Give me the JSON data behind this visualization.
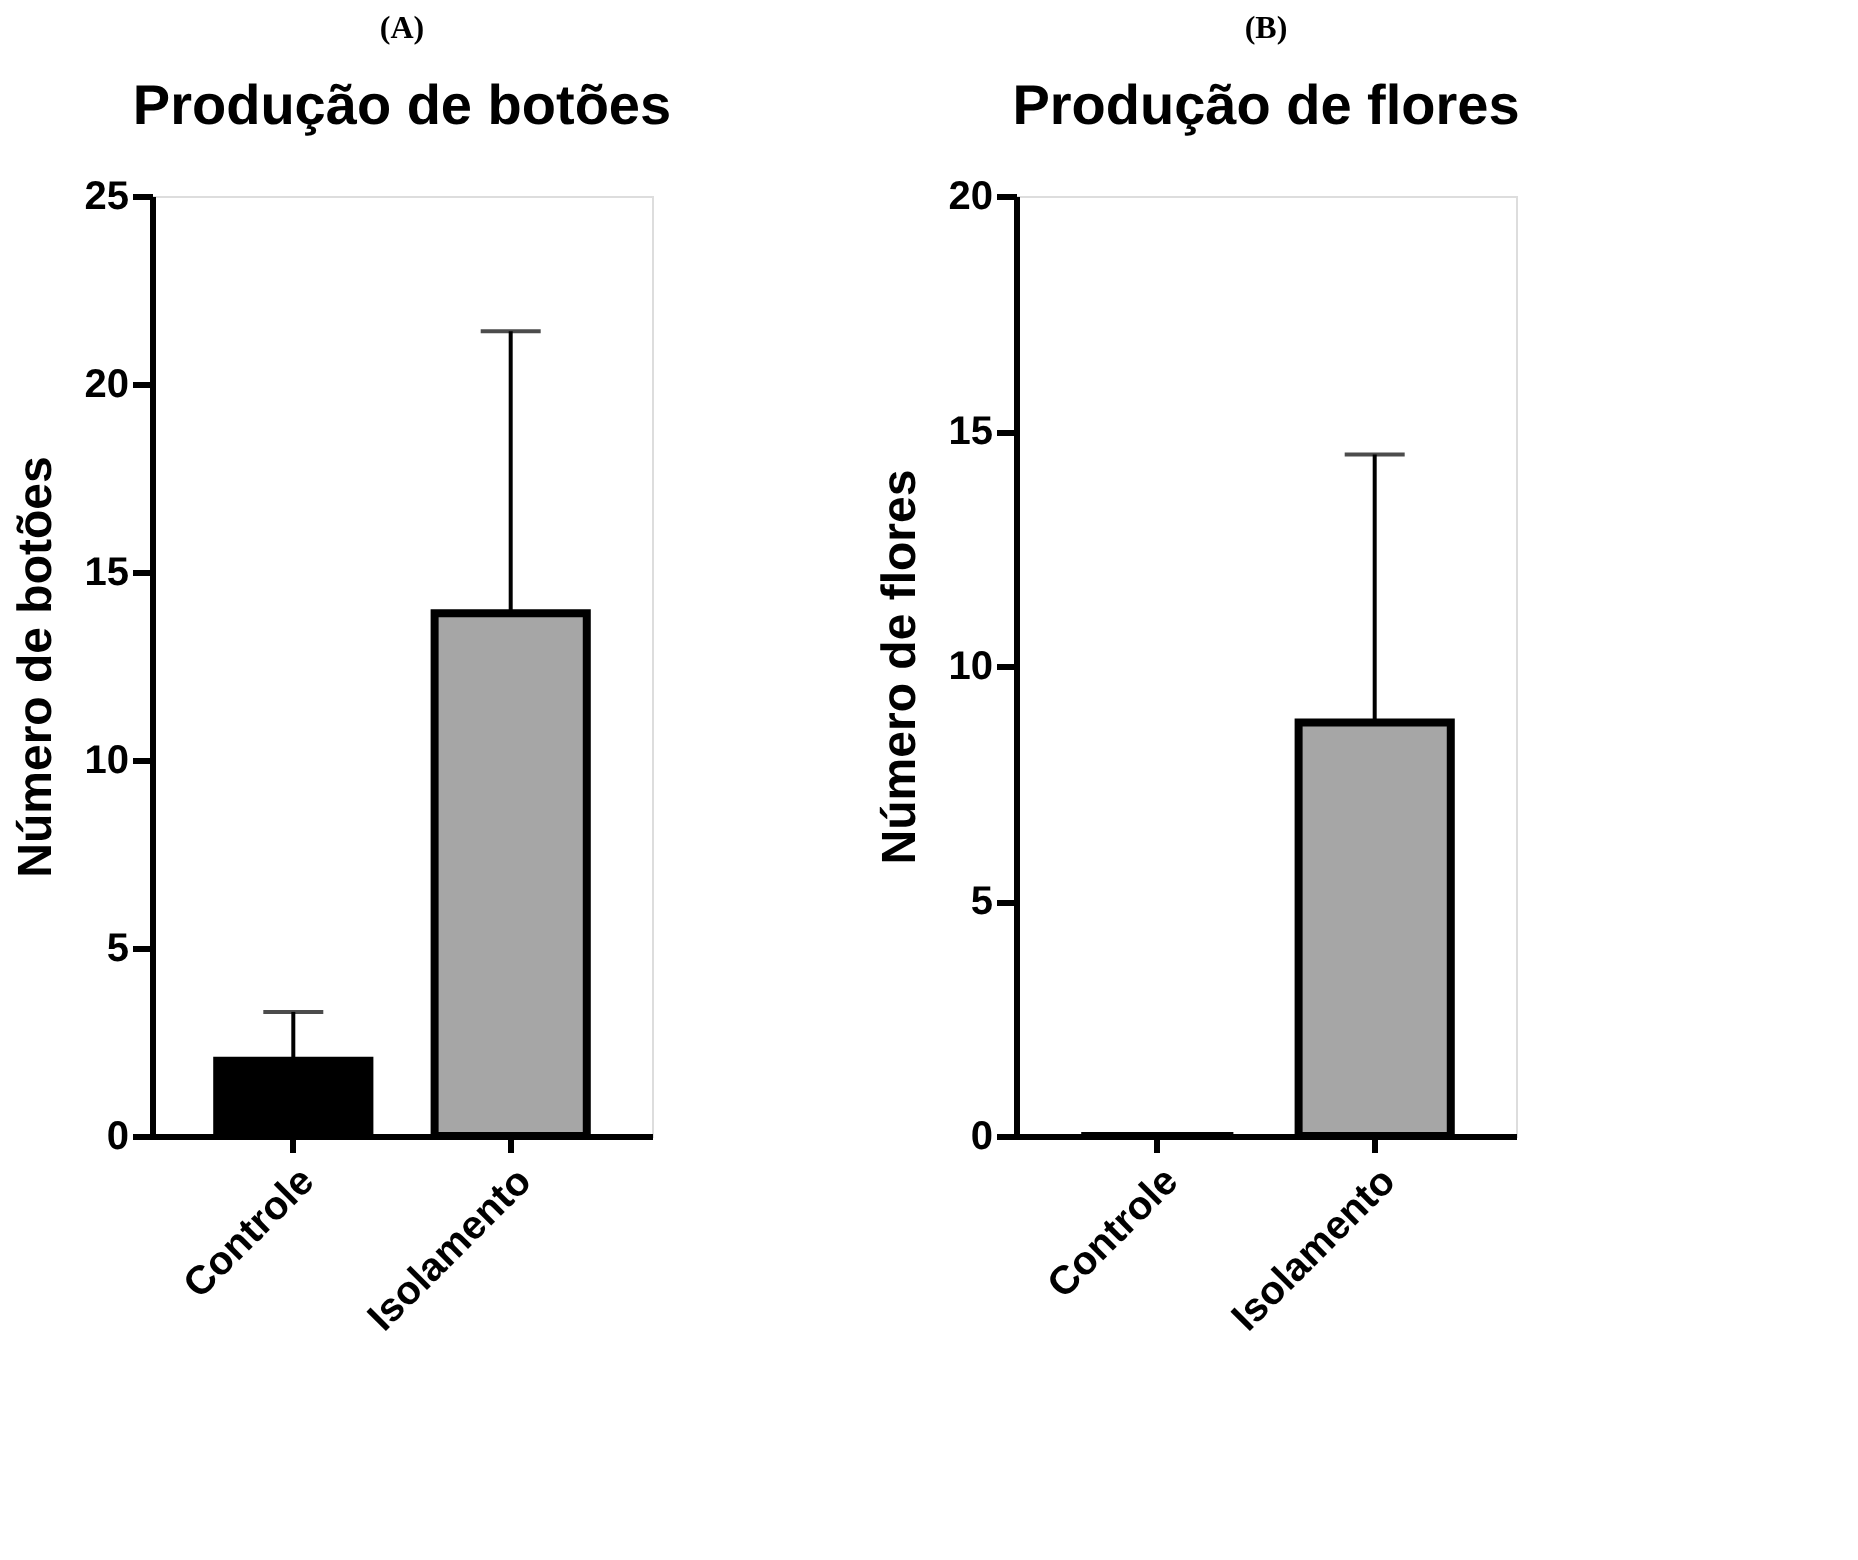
{
  "chart_data": [
    {
      "type": "bar",
      "title": "Produção de botões",
      "ylabel": "Número de botões",
      "annotations": [
        "(A)"
      ],
      "categories": [
        "Controle",
        "Isolamento"
      ],
      "values": [
        2,
        13.9
      ],
      "colors": [
        "#000000",
        "#a6a6a6"
      ],
      "errors": [
        [
          2,
          3.3
        ],
        [
          13.9,
          21.4
        ]
      ],
      "ylim": [
        0,
        25
      ],
      "yticks": [
        0,
        5,
        10,
        15,
        20,
        25
      ],
      "grid": false
    },
    {
      "type": "bar",
      "title": "Produção de flores",
      "ylabel": "Número de flores",
      "annotations": [
        "(B)"
      ],
      "categories": [
        "Controle",
        "Isolamento"
      ],
      "values": [
        0,
        8.8
      ],
      "colors": [
        "#000000",
        "#a6a6a6"
      ],
      "errors": [
        null,
        [
          8.8,
          14.5
        ]
      ],
      "ylim": [
        0,
        20
      ],
      "yticks": [
        0,
        5,
        10,
        15,
        20
      ],
      "grid": false
    }
  ]
}
